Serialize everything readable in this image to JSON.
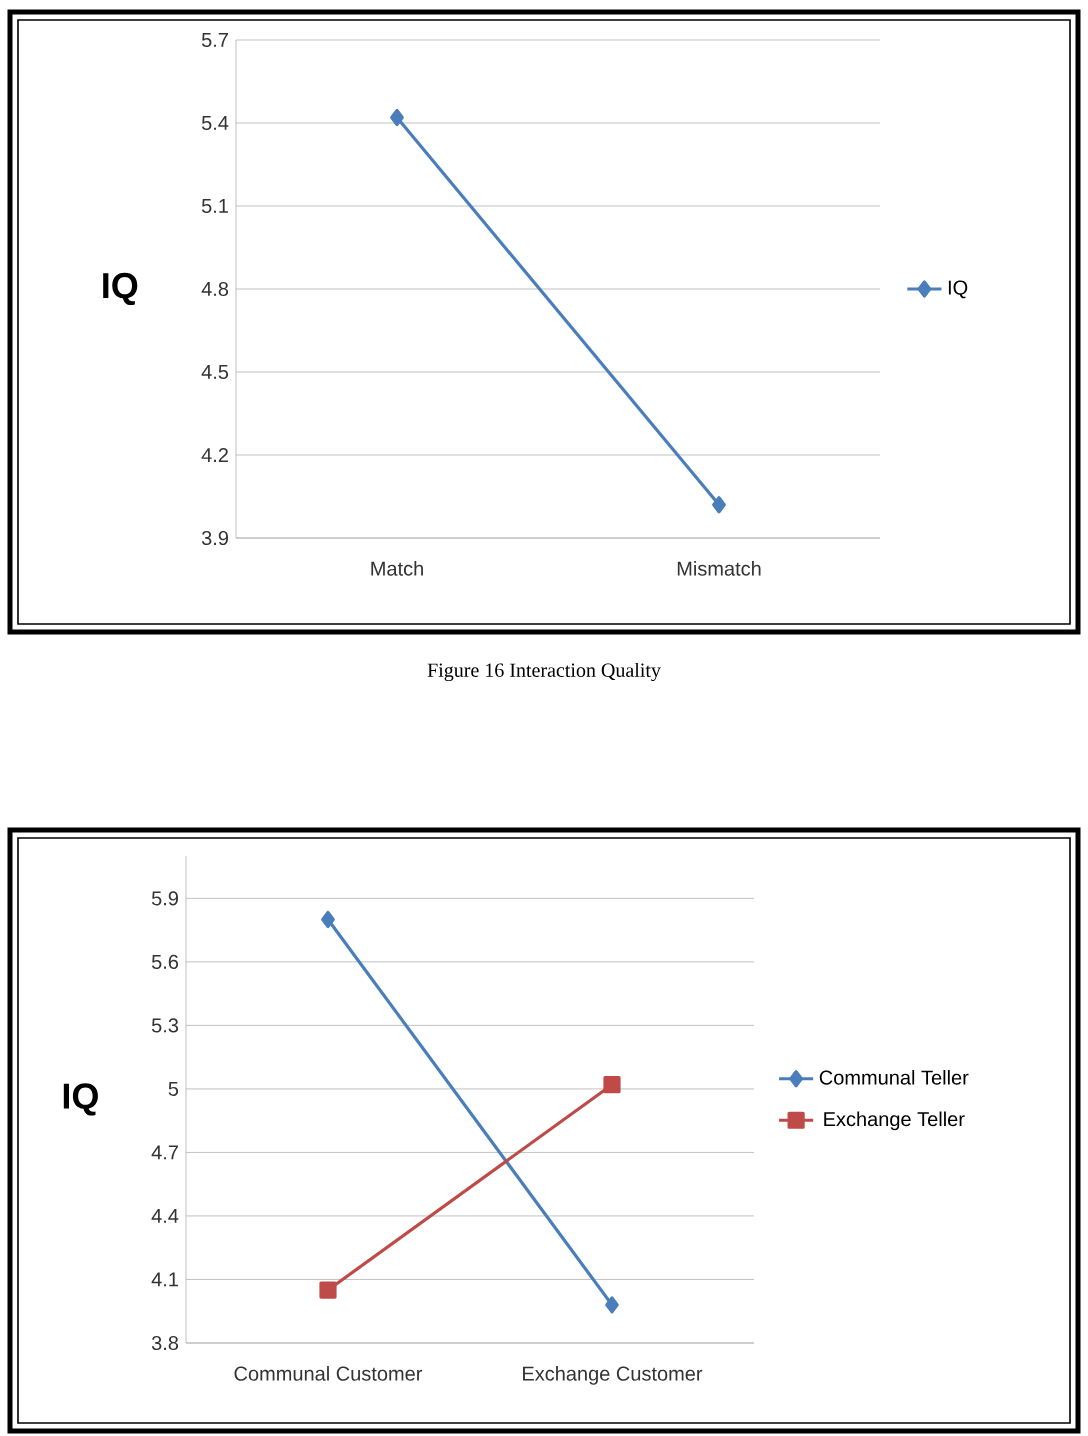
{
  "chart_data": [
    {
      "type": "line",
      "ylabel": "IQ",
      "categories": [
        "Match",
        "Mismatch"
      ],
      "series": [
        {
          "name": "IQ",
          "color": "#4a7ebb",
          "values": [
            5.42,
            4.02
          ],
          "marker": "diamond"
        }
      ],
      "ylim": [
        3.9,
        5.7
      ],
      "yticks": [
        3.9,
        4.2,
        4.5,
        4.8,
        5.1,
        5.4,
        5.7
      ],
      "grid": "y",
      "legend": "right",
      "annotations": [
        "Figure 16 Interaction Quality"
      ]
    },
    {
      "type": "line",
      "ylabel": "IQ",
      "categories": [
        "Communal Customer",
        "Exchange Customer"
      ],
      "series": [
        {
          "name": "Communal Teller",
          "color": "#4a7ebb",
          "values": [
            5.8,
            3.98
          ],
          "marker": "diamond"
        },
        {
          "name": "Exchange Teller",
          "color": "#be4b48",
          "values": [
            4.05,
            5.02
          ],
          "marker": "square"
        }
      ],
      "ylim": [
        3.8,
        6.1
      ],
      "yticks": [
        3.8,
        4.1,
        4.4,
        4.7,
        5,
        5.3,
        5.6,
        5.9
      ],
      "grid": "y",
      "legend": "right"
    }
  ]
}
